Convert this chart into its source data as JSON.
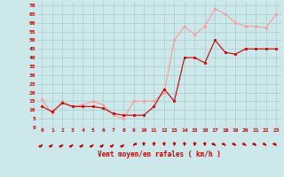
{
  "x": [
    0,
    1,
    2,
    3,
    4,
    5,
    6,
    7,
    8,
    9,
    10,
    11,
    12,
    13,
    14,
    15,
    16,
    17,
    18,
    19,
    20,
    21,
    22,
    23
  ],
  "vent_moyen": [
    12,
    9,
    14,
    12,
    12,
    12,
    11,
    8,
    7,
    7,
    7,
    12,
    22,
    15,
    40,
    40,
    37,
    50,
    43,
    42,
    45,
    45,
    45,
    45
  ],
  "rafales": [
    16,
    8,
    15,
    12,
    13,
    15,
    13,
    7,
    5,
    15,
    15,
    15,
    20,
    50,
    58,
    53,
    58,
    68,
    65,
    60,
    58,
    58,
    57,
    65
  ],
  "bg_color": "#cce8ea",
  "grid_color": "#aacccc",
  "line_color_moyen": "#cc0000",
  "line_color_rafales": "#ff9999",
  "xlabel": "Vent moyen/en rafales ( km/h )",
  "xlabel_color": "#cc0000",
  "tick_color": "#cc0000",
  "yticks": [
    0,
    5,
    10,
    15,
    20,
    25,
    30,
    35,
    40,
    45,
    50,
    55,
    60,
    65,
    70
  ],
  "ylim": [
    0,
    72
  ],
  "xlim": [
    -0.5,
    23.5
  ],
  "arrow_angles": [
    225,
    225,
    225,
    225,
    225,
    225,
    225,
    225,
    225,
    45,
    0,
    0,
    0,
    0,
    0,
    0,
    0,
    315,
    315,
    315,
    315,
    315,
    315,
    315
  ]
}
